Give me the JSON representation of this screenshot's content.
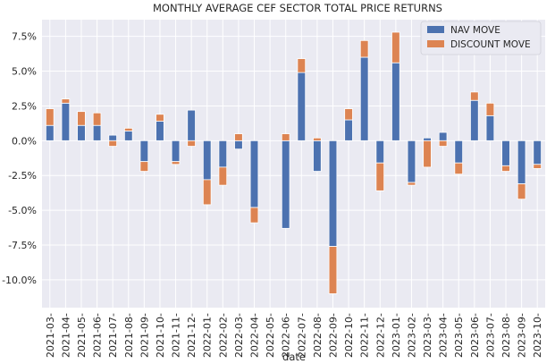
{
  "chart_data": {
    "type": "bar",
    "stacked": true,
    "title": "MONTHLY AVERAGE CEF SECTOR TOTAL PRICE RETURNS",
    "xlabel": "date",
    "ylabel": "",
    "ylim": [
      -12.0,
      8.7
    ],
    "yticks": [
      -10.0,
      -7.5,
      -5.0,
      -2.5,
      0.0,
      2.5,
      5.0,
      7.5
    ],
    "ytick_labels": [
      "-10.0%",
      "-7.5%",
      "-5.0%",
      "-2.5%",
      "0.0%",
      "2.5%",
      "5.0%",
      "7.5%"
    ],
    "grid": true,
    "legend_position": "top-right",
    "categories": [
      "2021-03-",
      "2021-04-",
      "2021-05-",
      "2021-06-",
      "2021-07-",
      "2021-08-",
      "2021-09-",
      "2021-10-",
      "2021-11-",
      "2021-12-",
      "2022-01-",
      "2022-02-",
      "2022-03-",
      "2022-04-",
      "2022-05-",
      "2022-06-",
      "2022-07-",
      "2022-08-",
      "2022-09-",
      "2022-10-",
      "2022-11-",
      "2022-12-",
      "2023-01-",
      "2023-02-",
      "2023-03-",
      "2023-04-",
      "2023-05-",
      "2023-06-",
      "2023-07-",
      "2023-08-",
      "2023-09-",
      "2023-10-"
    ],
    "series": [
      {
        "name": "NAV MOVE",
        "color": "#4c72b0",
        "values": [
          1.1,
          2.7,
          1.1,
          1.1,
          0.4,
          0.7,
          -1.5,
          1.4,
          -1.5,
          2.2,
          -2.8,
          -1.9,
          -0.6,
          -4.8,
          0.0,
          -6.3,
          4.9,
          -2.2,
          -7.6,
          1.5,
          6.0,
          -1.6,
          5.6,
          -3.0,
          0.2,
          0.6,
          -1.6,
          2.9,
          1.8,
          -1.8,
          -3.1,
          -1.7
        ]
      },
      {
        "name": "DISCOUNT MOVE",
        "color": "#dd8452",
        "values": [
          1.2,
          0.3,
          1.0,
          0.9,
          -0.4,
          0.2,
          -0.7,
          0.5,
          -0.2,
          -0.4,
          -1.8,
          -1.3,
          0.5,
          -1.1,
          0.0,
          0.5,
          1.0,
          0.2,
          -3.4,
          0.8,
          1.2,
          -2.0,
          2.2,
          -0.2,
          -1.9,
          -0.4,
          -0.8,
          0.6,
          0.9,
          -0.4,
          -1.1,
          -0.3
        ]
      }
    ]
  }
}
